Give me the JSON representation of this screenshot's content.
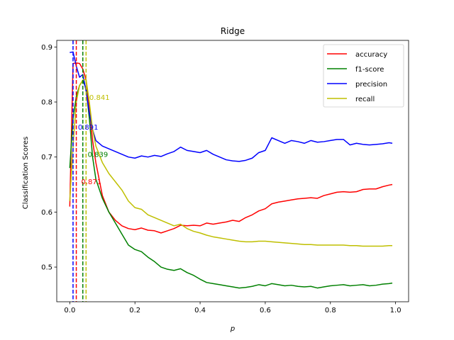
{
  "chart_data": {
    "type": "line",
    "title": "Ridge",
    "xlabel": "p",
    "ylabel": "Classification Scores",
    "xlim": [
      -0.04,
      1.04
    ],
    "ylim": [
      0.437,
      0.912
    ],
    "xticks": [
      0.0,
      0.2,
      0.4,
      0.6,
      0.8,
      1.0
    ],
    "xtick_labels": [
      "0.0",
      "0.2",
      "0.4",
      "0.6",
      "0.8",
      "1.0"
    ],
    "yticks": [
      0.5,
      0.6,
      0.7,
      0.8,
      0.9
    ],
    "ytick_labels": [
      "0.5",
      "0.6",
      "0.7",
      "0.8",
      "0.9"
    ],
    "grid": false,
    "legend_position": "top-right",
    "x": [
      0.0,
      0.01,
      0.02,
      0.03,
      0.04,
      0.05,
      0.06,
      0.07,
      0.08,
      0.1,
      0.12,
      0.14,
      0.16,
      0.18,
      0.2,
      0.22,
      0.24,
      0.26,
      0.28,
      0.3,
      0.32,
      0.34,
      0.36,
      0.38,
      0.4,
      0.42,
      0.44,
      0.46,
      0.48,
      0.5,
      0.52,
      0.54,
      0.56,
      0.58,
      0.6,
      0.62,
      0.64,
      0.66,
      0.68,
      0.7,
      0.72,
      0.74,
      0.76,
      0.78,
      0.8,
      0.82,
      0.84,
      0.86,
      0.88,
      0.9,
      0.92,
      0.94,
      0.96,
      0.98,
      0.99
    ],
    "series": [
      {
        "name": "accuracy",
        "color": "#ff0000",
        "values": [
          0.61,
          0.87,
          0.871,
          0.87,
          0.86,
          0.84,
          0.79,
          0.73,
          0.69,
          0.63,
          0.6,
          0.585,
          0.575,
          0.57,
          0.568,
          0.571,
          0.567,
          0.566,
          0.562,
          0.566,
          0.57,
          0.576,
          0.575,
          0.576,
          0.575,
          0.58,
          0.578,
          0.58,
          0.582,
          0.585,
          0.583,
          0.59,
          0.595,
          0.602,
          0.606,
          0.615,
          0.618,
          0.62,
          0.622,
          0.624,
          0.625,
          0.626,
          0.625,
          0.63,
          0.633,
          0.636,
          0.637,
          0.636,
          0.637,
          0.641,
          0.642,
          0.642,
          0.646,
          0.649,
          0.65
        ]
      },
      {
        "name": "f1-score",
        "color": "#008000",
        "values": [
          0.68,
          0.77,
          0.81,
          0.83,
          0.839,
          0.825,
          0.77,
          0.7,
          0.66,
          0.625,
          0.6,
          0.58,
          0.56,
          0.54,
          0.532,
          0.528,
          0.518,
          0.51,
          0.5,
          0.496,
          0.494,
          0.497,
          0.49,
          0.485,
          0.478,
          0.472,
          0.47,
          0.468,
          0.466,
          0.464,
          0.462,
          0.463,
          0.465,
          0.468,
          0.466,
          0.47,
          0.468,
          0.466,
          0.467,
          0.465,
          0.464,
          0.465,
          0.462,
          0.464,
          0.466,
          0.467,
          0.468,
          0.466,
          0.467,
          0.468,
          0.466,
          0.467,
          0.469,
          0.47,
          0.471
        ]
      },
      {
        "name": "precision",
        "color": "#0000ff",
        "values": [
          0.89,
          0.891,
          0.865,
          0.845,
          0.85,
          0.82,
          0.78,
          0.75,
          0.73,
          0.72,
          0.715,
          0.71,
          0.705,
          0.7,
          0.698,
          0.702,
          0.7,
          0.703,
          0.701,
          0.706,
          0.71,
          0.718,
          0.712,
          0.71,
          0.708,
          0.712,
          0.705,
          0.7,
          0.695,
          0.693,
          0.692,
          0.694,
          0.698,
          0.708,
          0.712,
          0.735,
          0.73,
          0.725,
          0.73,
          0.728,
          0.725,
          0.73,
          0.727,
          0.728,
          0.73,
          0.732,
          0.732,
          0.722,
          0.725,
          0.723,
          0.722,
          0.723,
          0.724,
          0.726,
          0.725
        ]
      },
      {
        "name": "recall",
        "color": "#bfbf00",
        "values": [
          0.62,
          0.72,
          0.8,
          0.83,
          0.84,
          0.841,
          0.8,
          0.75,
          0.72,
          0.69,
          0.67,
          0.655,
          0.64,
          0.62,
          0.608,
          0.605,
          0.595,
          0.59,
          0.585,
          0.58,
          0.575,
          0.578,
          0.57,
          0.565,
          0.562,
          0.558,
          0.555,
          0.553,
          0.551,
          0.549,
          0.547,
          0.546,
          0.546,
          0.547,
          0.547,
          0.546,
          0.545,
          0.544,
          0.543,
          0.542,
          0.541,
          0.541,
          0.54,
          0.54,
          0.54,
          0.54,
          0.54,
          0.539,
          0.539,
          0.538,
          0.538,
          0.538,
          0.538,
          0.539,
          0.539
        ]
      }
    ],
    "vlines": [
      {
        "x": 0.01,
        "color": "#0000ff"
      },
      {
        "x": 0.02,
        "color": "#ff0000"
      },
      {
        "x": 0.04,
        "color": "#008000"
      },
      {
        "x": 0.05,
        "color": "#bfbf00"
      }
    ],
    "annotations": [
      {
        "text": "0.841",
        "x": 0.06,
        "y": 0.804,
        "color": "#bfbf00"
      },
      {
        "text": "0.891",
        "x": 0.025,
        "y": 0.75,
        "color": "#0000ff"
      },
      {
        "text": "0.839",
        "x": 0.055,
        "y": 0.7,
        "color": "#008000"
      },
      {
        "text": "0.871",
        "x": 0.035,
        "y": 0.651,
        "color": "#ff0000"
      }
    ]
  }
}
